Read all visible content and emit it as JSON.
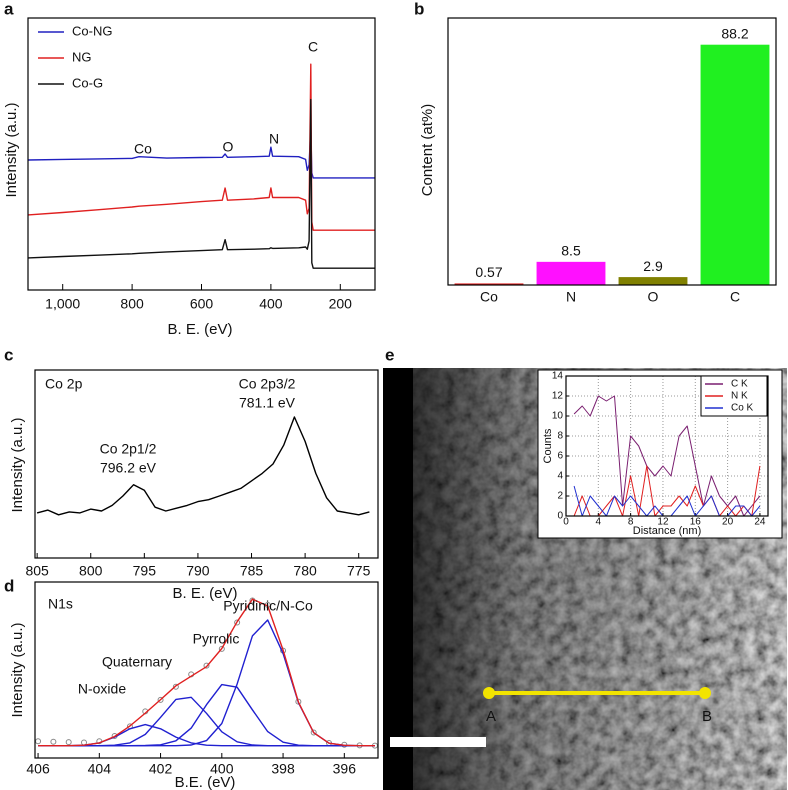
{
  "chart_data": [
    {
      "panel": "a",
      "type": "line",
      "xlabel": "B. E. (eV)",
      "ylabel": "Intensity (a.u.)",
      "xlim": [
        1100,
        100
      ],
      "ylim": [
        0,
        100
      ],
      "xticks": [
        {
          "value": 1000,
          "label": "1,000"
        },
        800,
        600,
        400,
        200
      ],
      "legend": "upper left",
      "annotations": [
        "Co",
        "O",
        "N",
        "C"
      ],
      "x": [
        1100,
        1000,
        900,
        800,
        780,
        700,
        600,
        540,
        532,
        525,
        450,
        405,
        400,
        395,
        320,
        300,
        295,
        290,
        285,
        282,
        278,
        250,
        200,
        100
      ],
      "series": [
        {
          "name": "Co-NG",
          "color": "#2020c0",
          "values": [
            47.8,
            48.0,
            48.2,
            48.4,
            49.0,
            48.5,
            48.7,
            48.8,
            50.0,
            48.8,
            49.0,
            49.2,
            52.5,
            49.2,
            49.0,
            48.0,
            44.0,
            46.0,
            60.0,
            43.0,
            41.2,
            41.2,
            41.2,
            41.2
          ]
        },
        {
          "name": "NG",
          "color": "#e02020",
          "values": [
            27.6,
            28.5,
            29.5,
            30.5,
            30.8,
            31.5,
            32.5,
            33.0,
            37.5,
            33.0,
            33.5,
            34.0,
            37.5,
            34.0,
            34.0,
            33.0,
            28.0,
            30.0,
            83.0,
            25.0,
            22.0,
            22.0,
            22.0,
            22.0
          ]
        },
        {
          "name": "Co-G",
          "color": "#111111",
          "values": [
            11.8,
            12.3,
            12.8,
            13.3,
            13.5,
            14.0,
            14.5,
            14.8,
            18.5,
            14.8,
            15.0,
            15.2,
            15.5,
            15.3,
            15.5,
            15.8,
            15.0,
            18.0,
            70.0,
            10.0,
            8.0,
            8.0,
            8.0,
            8.0
          ]
        }
      ]
    },
    {
      "panel": "b",
      "type": "bar",
      "ylabel": "Content (at%)",
      "ylim": [
        0,
        98
      ],
      "categories": [
        "Co",
        "N",
        "O",
        "C"
      ],
      "values": [
        0.57,
        8.5,
        2.9,
        88.2
      ],
      "colors": [
        "#e01818",
        "#ff10ff",
        "#808000",
        "#20f020"
      ]
    },
    {
      "panel": "c",
      "type": "line",
      "xlabel": "B. E. (eV)",
      "ylabel": "Intensity (a.u.)",
      "xlim": [
        805.2,
        773.2
      ],
      "ylim": [
        0,
        100
      ],
      "xticks": [
        805,
        800,
        795,
        790,
        785,
        780,
        775
      ],
      "annotations": [
        "Co 2p",
        "Co 2p3/2",
        "781.1 eV",
        "Co 2p1/2",
        "796.2 eV"
      ],
      "x": [
        805,
        804,
        803,
        802,
        801,
        800,
        799,
        798,
        797,
        796,
        795,
        794,
        793,
        792,
        791,
        790,
        789,
        788,
        787,
        786,
        785,
        784,
        783,
        782,
        781,
        780,
        779,
        778,
        777,
        776,
        775,
        774
      ],
      "series": [
        {
          "color": "#000000",
          "values": [
            24,
            25.5,
            23,
            24.5,
            24,
            26,
            25,
            28,
            33,
            39,
            36,
            27,
            25,
            26.5,
            28,
            30,
            31,
            33,
            35,
            37,
            41,
            45,
            50,
            60,
            75,
            62,
            45,
            32,
            25,
            24,
            23,
            24.5
          ]
        }
      ]
    },
    {
      "panel": "d",
      "type": "line",
      "xlabel": "B.E. (eV)",
      "ylabel": "Intensity (a.u.)",
      "xlim": [
        406.1,
        394.9
      ],
      "ylim": [
        0,
        100
      ],
      "xticks": [
        406,
        404,
        402,
        400,
        398,
        396
      ],
      "annotations": [
        "N1s",
        "Pyridinic/N-Co",
        "Pyrrolic",
        "Quaternary",
        "N-oxide"
      ],
      "x": [
        406,
        405.5,
        405,
        404.5,
        404,
        403.5,
        403,
        402.5,
        402,
        401.5,
        401,
        400.5,
        400,
        399.5,
        399,
        398.5,
        398,
        397.5,
        397,
        396.5,
        396,
        395.5,
        395
      ],
      "series": [
        {
          "color": "#888888",
          "marker": "circle",
          "values": [
            9.5,
            9.2,
            9.0,
            8.8,
            9.5,
            12.5,
            18.0,
            26.5,
            33.0,
            40.5,
            47.5,
            52.5,
            62.0,
            77.0,
            89.5,
            87.0,
            61.0,
            32.0,
            14.5,
            8.5,
            7.5,
            7.2,
            7.0
          ]
        },
        {
          "color": "#2020d0",
          "values": [
            7,
            7,
            7,
            7,
            7,
            7,
            7,
            7,
            7,
            7,
            7.4,
            9.9,
            19.6,
            42.0,
            69.4,
            78.4,
            59.3,
            31.5,
            14.4,
            8.4,
            7.2,
            7,
            7
          ]
        },
        {
          "color": "#2020d0",
          "values": [
            7,
            7,
            7,
            7,
            7,
            7,
            7,
            7.1,
            7.5,
            9.8,
            17.0,
            30.3,
            41.7,
            40.2,
            27.4,
            15.0,
            9.0,
            7.3,
            7,
            7,
            7,
            7,
            7
          ]
        },
        {
          "color": "#2020d0",
          "values": [
            7,
            7,
            7,
            7,
            7,
            7.3,
            8.6,
            13.4,
            23.1,
            33.3,
            34.5,
            25.4,
            14.9,
            9.2,
            7.4,
            7,
            7,
            7,
            7,
            7,
            7,
            7,
            7
          ]
        },
        {
          "color": "#2020d0",
          "values": [
            7,
            7,
            7,
            7.3,
            8.6,
            11.9,
            16.6,
            19.0,
            16.6,
            11.9,
            8.6,
            7.3,
            7,
            7,
            7,
            7,
            7,
            7,
            7,
            7,
            7,
            7,
            7
          ]
        },
        {
          "color": "#e02020",
          "values": [
            7,
            7,
            7,
            7.3,
            8.6,
            12.2,
            18.2,
            25.5,
            33.2,
            41.0,
            46.5,
            51.9,
            62.2,
            77.4,
            90.2,
            86.4,
            61.3,
            31.8,
            14.4,
            8.4,
            7.2,
            7,
            7
          ]
        }
      ]
    },
    {
      "panel": "e",
      "type": "line",
      "xlabel": "Distance (nm)",
      "ylabel": "Counts",
      "xlim": [
        0,
        25
      ],
      "ylim": [
        0,
        14
      ],
      "xticks": [
        0,
        4,
        8,
        12,
        16,
        20,
        24
      ],
      "yticks": [
        0,
        2,
        4,
        6,
        8,
        10,
        12,
        14
      ],
      "grid": true,
      "legend": "upper right",
      "annotations": [
        "A",
        "B"
      ],
      "x": [
        1,
        2,
        3,
        4,
        5,
        6,
        7,
        8,
        9,
        10,
        11,
        12,
        13,
        14,
        15,
        16,
        17,
        18,
        19,
        20,
        21,
        22,
        23,
        24
      ],
      "series": [
        {
          "name": "C K",
          "color": "#7a1f70",
          "values": [
            10.2,
            11,
            10,
            12,
            11.5,
            12,
            1,
            8,
            7,
            5,
            4,
            5,
            4,
            8,
            9,
            5,
            1,
            4,
            2,
            1,
            2,
            0,
            1,
            2
          ]
        },
        {
          "name": "N K",
          "color": "#e02020",
          "values": [
            0,
            2,
            0,
            0,
            1,
            2,
            0,
            4,
            0,
            5,
            0,
            1,
            1,
            2,
            1,
            3,
            1,
            2,
            0,
            1,
            0,
            1,
            0,
            5
          ]
        },
        {
          "name": "Co K",
          "color": "#2030d0",
          "values": [
            3,
            0,
            2,
            1,
            0,
            2,
            1,
            2,
            1,
            0,
            1,
            0,
            0,
            1,
            2,
            0,
            1,
            2,
            0,
            0,
            1,
            1,
            0,
            1
          ]
        }
      ]
    }
  ]
}
